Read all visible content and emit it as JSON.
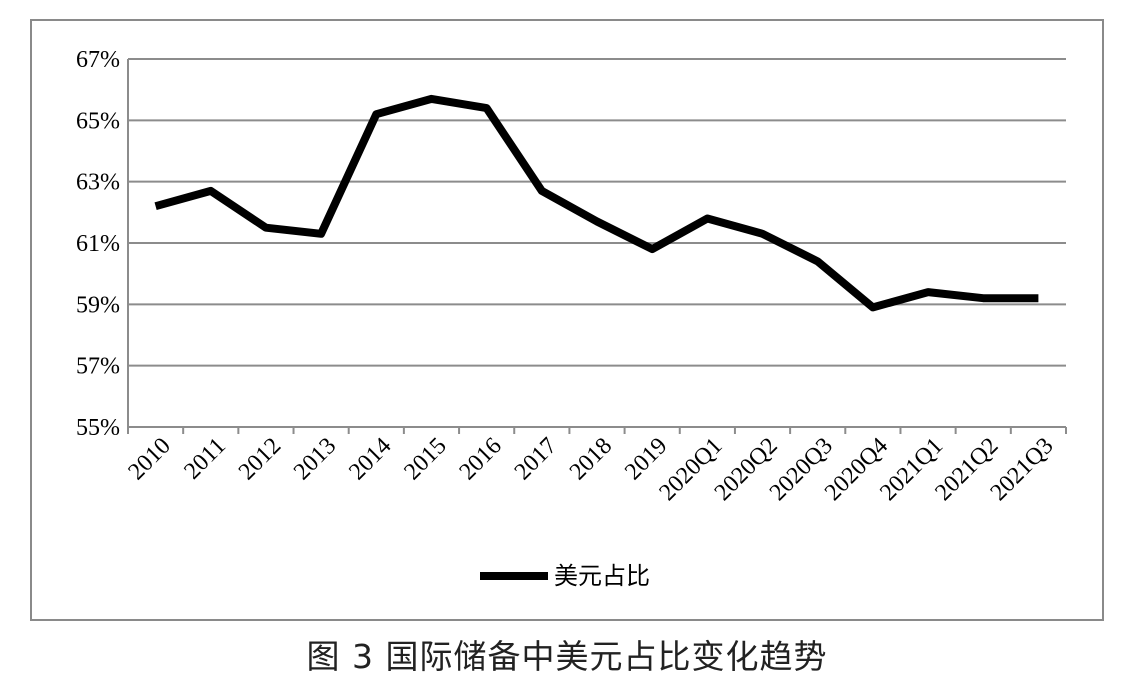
{
  "caption": "图 3  国际储备中美元占比变化趋势",
  "colors": {
    "line": "#000000",
    "grid": "#8c8c8c",
    "frame": "#8a8a8a"
  },
  "chart_data": {
    "type": "line",
    "categories": [
      "2010",
      "2011",
      "2012",
      "2013",
      "2014",
      "2015",
      "2016",
      "2017",
      "2018",
      "2019",
      "2020Q1",
      "2020Q2",
      "2020Q3",
      "2020Q4",
      "2021Q1",
      "2021Q2",
      "2021Q3"
    ],
    "series": [
      {
        "name": "美元占比",
        "values": [
          62.2,
          62.7,
          61.5,
          61.3,
          65.2,
          65.7,
          65.4,
          62.7,
          61.7,
          60.8,
          61.8,
          61.3,
          60.4,
          58.9,
          59.4,
          59.2,
          59.2
        ]
      }
    ],
    "y_ticks": [
      "55%",
      "57%",
      "59%",
      "61%",
      "63%",
      "65%",
      "67%"
    ],
    "ylim": [
      55,
      67
    ],
    "y_unit": "%",
    "grid": true,
    "legend_position": "bottom"
  }
}
